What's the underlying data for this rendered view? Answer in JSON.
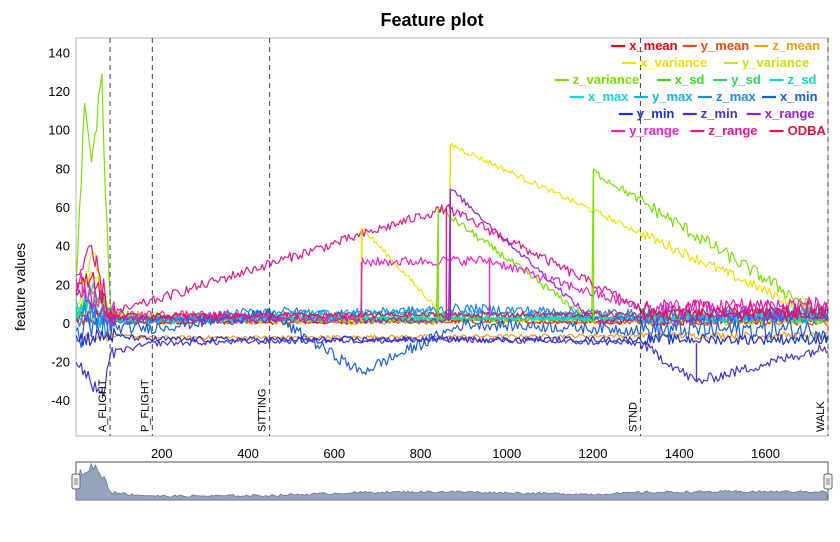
{
  "chart_data": {
    "type": "line",
    "title": "Feature plot",
    "xlabel": "",
    "ylabel": "feature values",
    "xlim": [
      1,
      1745
    ],
    "ylim": [
      -58,
      148
    ],
    "x_ticks": [
      200,
      400,
      600,
      800,
      1000,
      1200,
      1400,
      1600
    ],
    "y_ticks": [
      140,
      120,
      100,
      80,
      60,
      40,
      20,
      0,
      -20,
      -40
    ],
    "grid": false,
    "legend_position": "top-right",
    "series": [
      {
        "name": "x_mean",
        "color": "#e8000f",
        "base": 1.5,
        "noise": 1.2,
        "x": [
          1,
          50,
          80,
          120,
          200,
          450,
          660,
          870,
          1200,
          1310,
          1500,
          1745
        ],
        "values": [
          2,
          5,
          3,
          1,
          1,
          1,
          1,
          2,
          1,
          1,
          2,
          2
        ]
      },
      {
        "name": "y_mean",
        "color": "#f04a0a",
        "base": 1.0,
        "noise": 1.0,
        "x": [
          1,
          50,
          80,
          120,
          200,
          450,
          870,
          1310,
          1745
        ],
        "values": [
          1,
          4,
          2,
          1,
          1,
          1,
          1,
          1,
          1
        ]
      },
      {
        "name": "z_mean",
        "color": "#f39c12",
        "base": -7,
        "noise": 1.0,
        "x": [
          1,
          80,
          180,
          450,
          1310,
          1745
        ],
        "values": [
          -7,
          -6,
          -7,
          -7,
          -6,
          -6
        ]
      },
      {
        "name": "x_variance",
        "color": "#f5e000",
        "base": 1,
        "noise": 1.5,
        "x": [
          1,
          40,
          60,
          80,
          662,
          663,
          868,
          869,
          1745
        ],
        "values": [
          5,
          40,
          20,
          3,
          1,
          50,
          1,
          93,
          2
        ]
      },
      {
        "name": "y_variance",
        "color": "#c8e600",
        "base": 1,
        "noise": 1.5,
        "x": [
          1,
          40,
          80,
          1745
        ],
        "values": [
          5,
          30,
          3,
          2
        ]
      },
      {
        "name": "z_variance",
        "color": "#7be000",
        "base": 1,
        "noise": 2.0,
        "x": [
          1,
          20,
          40,
          60,
          80,
          840,
          841,
          1200,
          1201,
          1745
        ],
        "values": [
          20,
          110,
          85,
          131,
          5,
          1,
          60,
          1,
          79,
          3
        ]
      },
      {
        "name": "x_sd",
        "color": "#3ddc1a",
        "base": 1.5,
        "noise": 1.0,
        "x": [
          1,
          40,
          80,
          1745
        ],
        "values": [
          5,
          15,
          3,
          3
        ]
      },
      {
        "name": "y_sd",
        "color": "#2ad86a",
        "base": 1.5,
        "noise": 1.0,
        "x": [
          1,
          40,
          80,
          1745
        ],
        "values": [
          4,
          12,
          2,
          3
        ]
      },
      {
        "name": "z_sd",
        "color": "#1ad6b0",
        "base": 2,
        "noise": 1.5,
        "x": [
          1,
          40,
          80,
          1745
        ],
        "values": [
          6,
          20,
          3,
          3
        ]
      },
      {
        "name": "x_max",
        "color": "#10d6e0",
        "base": 3,
        "noise": 2.0,
        "x": [
          1,
          80,
          180,
          450,
          660,
          900,
          1310,
          1745
        ],
        "values": [
          10,
          3,
          2,
          3,
          5,
          4,
          3,
          6
        ]
      },
      {
        "name": "y_max",
        "color": "#12b0f0",
        "base": 3,
        "noise": 2.0,
        "x": [
          1,
          80,
          200,
          450,
          700,
          1000,
          1310,
          1745
        ],
        "values": [
          8,
          2,
          3,
          5,
          6,
          5,
          4,
          5
        ]
      },
      {
        "name": "z_max",
        "color": "#1e88e8",
        "base": 4,
        "noise": 2.5,
        "x": [
          1,
          80,
          180,
          450,
          600,
          900,
          1310,
          1745
        ],
        "values": [
          6,
          2,
          1,
          7,
          5,
          8,
          5,
          5
        ]
      },
      {
        "name": "x_min",
        "color": "#1a5ee6",
        "base": -3,
        "noise": 3.0,
        "x": [
          1,
          80,
          180,
          450,
          662,
          900,
          1310,
          1745
        ],
        "values": [
          -5,
          -2,
          -2,
          5,
          -25,
          0,
          -3,
          -3
        ]
      },
      {
        "name": "y_min",
        "color": "#1a30d8",
        "base": -8,
        "noise": 1.5,
        "x": [
          1,
          80,
          180,
          450,
          1310,
          1745
        ],
        "values": [
          -8,
          -6,
          -8,
          -8,
          -8,
          -8
        ]
      },
      {
        "name": "z_min",
        "color": "#4a2ed8",
        "base": -10,
        "noise": 1.5,
        "x": [
          1,
          60,
          80,
          180,
          450,
          870,
          1310,
          1440,
          1745
        ],
        "values": [
          -18,
          -40,
          -15,
          -10,
          -9,
          -8,
          -10,
          -30,
          -12
        ]
      },
      {
        "name": "x_range",
        "color": "#9a20d8",
        "base": 2,
        "noise": 1.5,
        "x": [
          1,
          80,
          600,
          868,
          869,
          1200,
          1745
        ],
        "values": [
          20,
          3,
          2,
          2,
          70,
          2,
          4
        ]
      },
      {
        "name": "y_range",
        "color": "#f020c8",
        "base": 3,
        "noise": 2.5,
        "x": [
          1,
          80,
          662,
          663,
          960,
          1310,
          1745
        ],
        "values": [
          25,
          5,
          3,
          32,
          33,
          8,
          10
        ]
      },
      {
        "name": "z_range",
        "color": "#e8148a",
        "base": 3,
        "noise": 2.5,
        "x": [
          1,
          40,
          80,
          860,
          1310,
          1745
        ],
        "values": [
          25,
          35,
          5,
          60,
          8,
          8
        ]
      },
      {
        "name": "ODBA",
        "color": "#e8103c",
        "base": 2,
        "noise": 1.5,
        "x": [
          1,
          40,
          80,
          1310,
          1745
        ],
        "values": [
          18,
          25,
          4,
          5,
          6
        ]
      }
    ],
    "events": [
      {
        "label": "A_FLIGHT",
        "x": 80
      },
      {
        "label": "P_FLIGHT",
        "x": 178
      },
      {
        "label": "SITTING",
        "x": 450
      },
      {
        "label": "STND",
        "x": 1310
      },
      {
        "label": "WALK",
        "x": 1745
      }
    ],
    "navigator": {
      "fill": "#95a4bd",
      "line": "#6b7a94",
      "x": [
        1,
        20,
        40,
        60,
        80,
        120,
        200,
        450,
        662,
        868,
        1200,
        1310,
        1500,
        1745
      ],
      "values": [
        60,
        75,
        90,
        70,
        25,
        15,
        10,
        12,
        20,
        22,
        15,
        20,
        22,
        22
      ]
    }
  }
}
